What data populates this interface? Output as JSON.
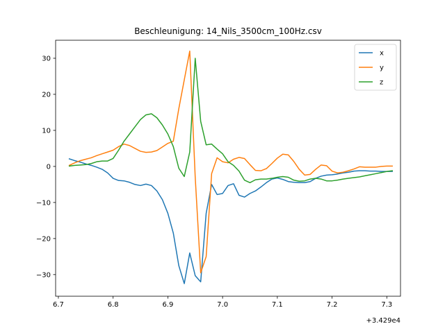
{
  "chart_data": {
    "type": "line",
    "title": "Beschleunigung: 14_Nils_3500cm_100Hz.csv",
    "xlabel": "",
    "ylabel": "",
    "x_offset_label": "+3.429e4",
    "xlim": [
      6.695,
      7.325
    ],
    "ylim": [
      -36,
      35
    ],
    "xticks": [
      6.7,
      6.8,
      6.9,
      7.0,
      7.1,
      7.2,
      7.3
    ],
    "xtick_labels": [
      "6.7",
      "6.8",
      "6.9",
      "7.0",
      "7.1",
      "7.2",
      "7.3"
    ],
    "yticks": [
      -30,
      -20,
      -10,
      0,
      10,
      20,
      30
    ],
    "ytick_labels": [
      "−30",
      "−20",
      "−10",
      "0",
      "10",
      "20",
      "30"
    ],
    "grid": false,
    "legend_position": "top-right",
    "x": [
      6.72,
      6.73,
      6.74,
      6.75,
      6.76,
      6.77,
      6.78,
      6.79,
      6.8,
      6.81,
      6.82,
      6.83,
      6.84,
      6.85,
      6.86,
      6.87,
      6.88,
      6.89,
      6.9,
      6.91,
      6.92,
      6.93,
      6.94,
      6.95,
      6.96,
      6.97,
      6.98,
      6.99,
      7.0,
      7.01,
      7.02,
      7.03,
      7.04,
      7.05,
      7.06,
      7.07,
      7.08,
      7.09,
      7.1,
      7.11,
      7.12,
      7.13,
      7.14,
      7.15,
      7.16,
      7.17,
      7.18,
      7.19,
      7.2,
      7.21,
      7.22,
      7.23,
      7.24,
      7.25,
      7.26,
      7.27,
      7.28,
      7.29,
      7.3,
      7.31
    ],
    "series": [
      {
        "name": "x",
        "color": "#1f77b4",
        "values": [
          2.1,
          1.6,
          1.2,
          0.7,
          0.3,
          -0.2,
          -0.8,
          -1.8,
          -3.3,
          -3.9,
          -4.0,
          -4.4,
          -5.0,
          -5.3,
          -4.9,
          -5.3,
          -6.8,
          -9.2,
          -13,
          -18.5,
          -27.5,
          -32.5,
          -24,
          -30.3,
          -32,
          -13,
          -5,
          -7.8,
          -7.5,
          -5.3,
          -4.8,
          -8,
          -8.5,
          -7.5,
          -6.8,
          -5.7,
          -4.5,
          -3.5,
          -3.2,
          -3.6,
          -4.2,
          -4.4,
          -4.5,
          -4.5,
          -4.2,
          -3.3,
          -2.7,
          -2.4,
          -2.3,
          -2.1,
          -1.8,
          -1.6,
          -1.3,
          -1.2,
          -1.2,
          -1.3,
          -1.3,
          -1.4,
          -1.4,
          -1.4
        ]
      },
      {
        "name": "y",
        "color": "#ff7f0e",
        "values": [
          0.3,
          1.0,
          1.6,
          2.0,
          2.4,
          3.0,
          3.5,
          4.0,
          4.5,
          5.5,
          6.2,
          5.8,
          5.0,
          4.2,
          3.9,
          4.0,
          4.4,
          5.4,
          6.4,
          7.0,
          16,
          24,
          32,
          -3,
          -29.5,
          -25,
          -2,
          2.4,
          1.3,
          1.0,
          2.0,
          2.5,
          2.2,
          0.5,
          -1.1,
          -1.2,
          -0.6,
          0.8,
          2.3,
          3.4,
          3.2,
          1.4,
          -0.8,
          -2.4,
          -2.2,
          -0.8,
          0.4,
          0.2,
          -1.3,
          -1.8,
          -1.6,
          -1.2,
          -0.7,
          -0.1,
          -0.2,
          -0.2,
          -0.2,
          0.0,
          0.1,
          0.1
        ]
      },
      {
        "name": "z",
        "color": "#2ca02c",
        "values": [
          0.1,
          0.3,
          0.4,
          0.5,
          0.8,
          1.3,
          1.5,
          1.5,
          2.2,
          4.5,
          7.0,
          9.0,
          11.0,
          13.0,
          14.3,
          14.6,
          13.5,
          11.5,
          9.0,
          5.5,
          -0.5,
          -2.8,
          4,
          30,
          12.5,
          6.0,
          6.2,
          4.8,
          3.5,
          1.3,
          0.3,
          -1.3,
          -3.8,
          -4.5,
          -3.7,
          -3.5,
          -3.5,
          -3.3,
          -3.0,
          -2.8,
          -3.0,
          -3.8,
          -4.1,
          -4.0,
          -3.5,
          -3.3,
          -3.5,
          -4.0,
          -4.0,
          -3.8,
          -3.5,
          -3.3,
          -3.1,
          -2.9,
          -2.6,
          -2.3,
          -2.0,
          -1.7,
          -1.4,
          -1.2
        ]
      }
    ]
  }
}
